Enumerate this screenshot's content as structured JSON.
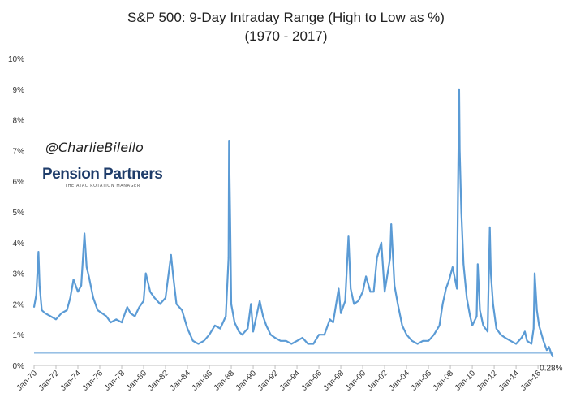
{
  "chart_data": {
    "type": "line",
    "title_line1": "S&P 500: 9-Day Intraday Range (High to Low as %)",
    "title_line2": "(1970 - 2017)",
    "xlabel": "",
    "ylabel": "",
    "ylim": [
      0,
      10
    ],
    "y_ticks": [
      "0%",
      "1%",
      "2%",
      "3%",
      "4%",
      "5%",
      "6%",
      "7%",
      "8%",
      "9%",
      "10%"
    ],
    "x_ticks": [
      "Jan-70",
      "Jan-72",
      "Jan-74",
      "Jan-76",
      "Jan-78",
      "Jan-80",
      "Jan-82",
      "Jan-84",
      "Jan-86",
      "Jan-88",
      "Jan-90",
      "Jan-92",
      "Jan-94",
      "Jan-96",
      "Jan-98",
      "Jan-00",
      "Jan-02",
      "Jan-04",
      "Jan-06",
      "Jan-08",
      "Jan-10",
      "Jan-12",
      "Jan-14",
      "Jan-16"
    ],
    "x_range": [
      1970.0,
      2017.4
    ],
    "grid": false,
    "series": [
      {
        "name": "9-Day Intraday Range (%)",
        "color": "#5b9bd5",
        "x": [
          1970.0,
          1970.2,
          1970.4,
          1970.5,
          1970.7,
          1971.0,
          1971.5,
          1972.0,
          1972.5,
          1973.0,
          1973.3,
          1973.6,
          1974.0,
          1974.3,
          1974.6,
          1974.8,
          1975.0,
          1975.4,
          1975.8,
          1976.2,
          1976.6,
          1977.0,
          1977.5,
          1978.0,
          1978.5,
          1978.8,
          1979.2,
          1979.6,
          1980.0,
          1980.2,
          1980.6,
          1981.0,
          1981.5,
          1982.0,
          1982.5,
          1982.7,
          1983.0,
          1983.5,
          1984.0,
          1984.5,
          1985.0,
          1985.5,
          1986.0,
          1986.5,
          1987.0,
          1987.5,
          1987.75,
          1987.8,
          1987.9,
          1988.0,
          1988.3,
          1988.7,
          1989.0,
          1989.5,
          1989.8,
          1990.0,
          1990.6,
          1990.9,
          1991.2,
          1991.6,
          1992.0,
          1992.5,
          1993.0,
          1993.5,
          1994.0,
          1994.5,
          1995.0,
          1995.5,
          1996.0,
          1996.5,
          1997.0,
          1997.3,
          1997.8,
          1998.0,
          1998.4,
          1998.7,
          1998.9,
          1999.2,
          1999.6,
          2000.0,
          2000.3,
          2000.7,
          2001.0,
          2001.3,
          2001.7,
          2002.0,
          2002.5,
          2002.6,
          2002.9,
          2003.2,
          2003.6,
          2004.0,
          2004.5,
          2005.0,
          2005.5,
          2006.0,
          2006.5,
          2007.0,
          2007.3,
          2007.6,
          2007.9,
          2008.2,
          2008.6,
          2008.8,
          2008.85,
          2009.0,
          2009.2,
          2009.5,
          2009.8,
          2010.0,
          2010.4,
          2010.5,
          2010.7,
          2011.0,
          2011.4,
          2011.6,
          2011.7,
          2011.9,
          2012.2,
          2012.6,
          2013.0,
          2013.5,
          2014.0,
          2014.5,
          2014.8,
          2015.0,
          2015.4,
          2015.6,
          2015.7,
          2015.9,
          2016.1,
          2016.5,
          2016.8,
          2017.0,
          2017.2,
          2017.35
        ],
        "y": [
          1.9,
          2.3,
          3.7,
          2.6,
          1.8,
          1.7,
          1.6,
          1.5,
          1.7,
          1.8,
          2.2,
          2.8,
          2.4,
          2.6,
          4.3,
          3.2,
          2.9,
          2.2,
          1.8,
          1.7,
          1.6,
          1.4,
          1.5,
          1.4,
          1.9,
          1.7,
          1.6,
          1.9,
          2.1,
          3.0,
          2.4,
          2.2,
          2.0,
          2.2,
          3.6,
          2.9,
          2.0,
          1.8,
          1.2,
          0.8,
          0.7,
          0.8,
          1.0,
          1.3,
          1.2,
          1.6,
          3.5,
          7.3,
          4.8,
          2.0,
          1.4,
          1.1,
          1.0,
          1.2,
          2.0,
          1.1,
          2.1,
          1.6,
          1.3,
          1.0,
          0.9,
          0.8,
          0.8,
          0.7,
          0.8,
          0.9,
          0.7,
          0.7,
          1.0,
          1.0,
          1.5,
          1.4,
          2.5,
          1.7,
          2.1,
          4.2,
          2.5,
          2.0,
          2.1,
          2.4,
          2.9,
          2.4,
          2.4,
          3.5,
          4.0,
          2.4,
          3.5,
          4.6,
          2.6,
          2.0,
          1.3,
          1.0,
          0.8,
          0.7,
          0.8,
          0.8,
          1.0,
          1.3,
          2.0,
          2.5,
          2.8,
          3.2,
          2.5,
          9.0,
          7.0,
          5.0,
          3.3,
          2.2,
          1.6,
          1.3,
          1.6,
          3.3,
          1.8,
          1.3,
          1.1,
          4.5,
          3.0,
          2.0,
          1.2,
          1.0,
          0.9,
          0.8,
          0.7,
          0.9,
          1.1,
          0.8,
          0.7,
          1.2,
          3.0,
          1.8,
          1.3,
          0.8,
          0.5,
          0.6,
          0.4,
          0.28
        ]
      }
    ],
    "reference_line": {
      "value": 0.4,
      "color": "#5b9bd5"
    },
    "annotations": [
      {
        "text": "0.28%",
        "x": 2017.35,
        "y": 0.28
      }
    ]
  },
  "watermark": {
    "handle": "@CharlieBilello",
    "brand": "Pension Partners",
    "tagline": "THE ATAC ROTATION MANAGER"
  }
}
